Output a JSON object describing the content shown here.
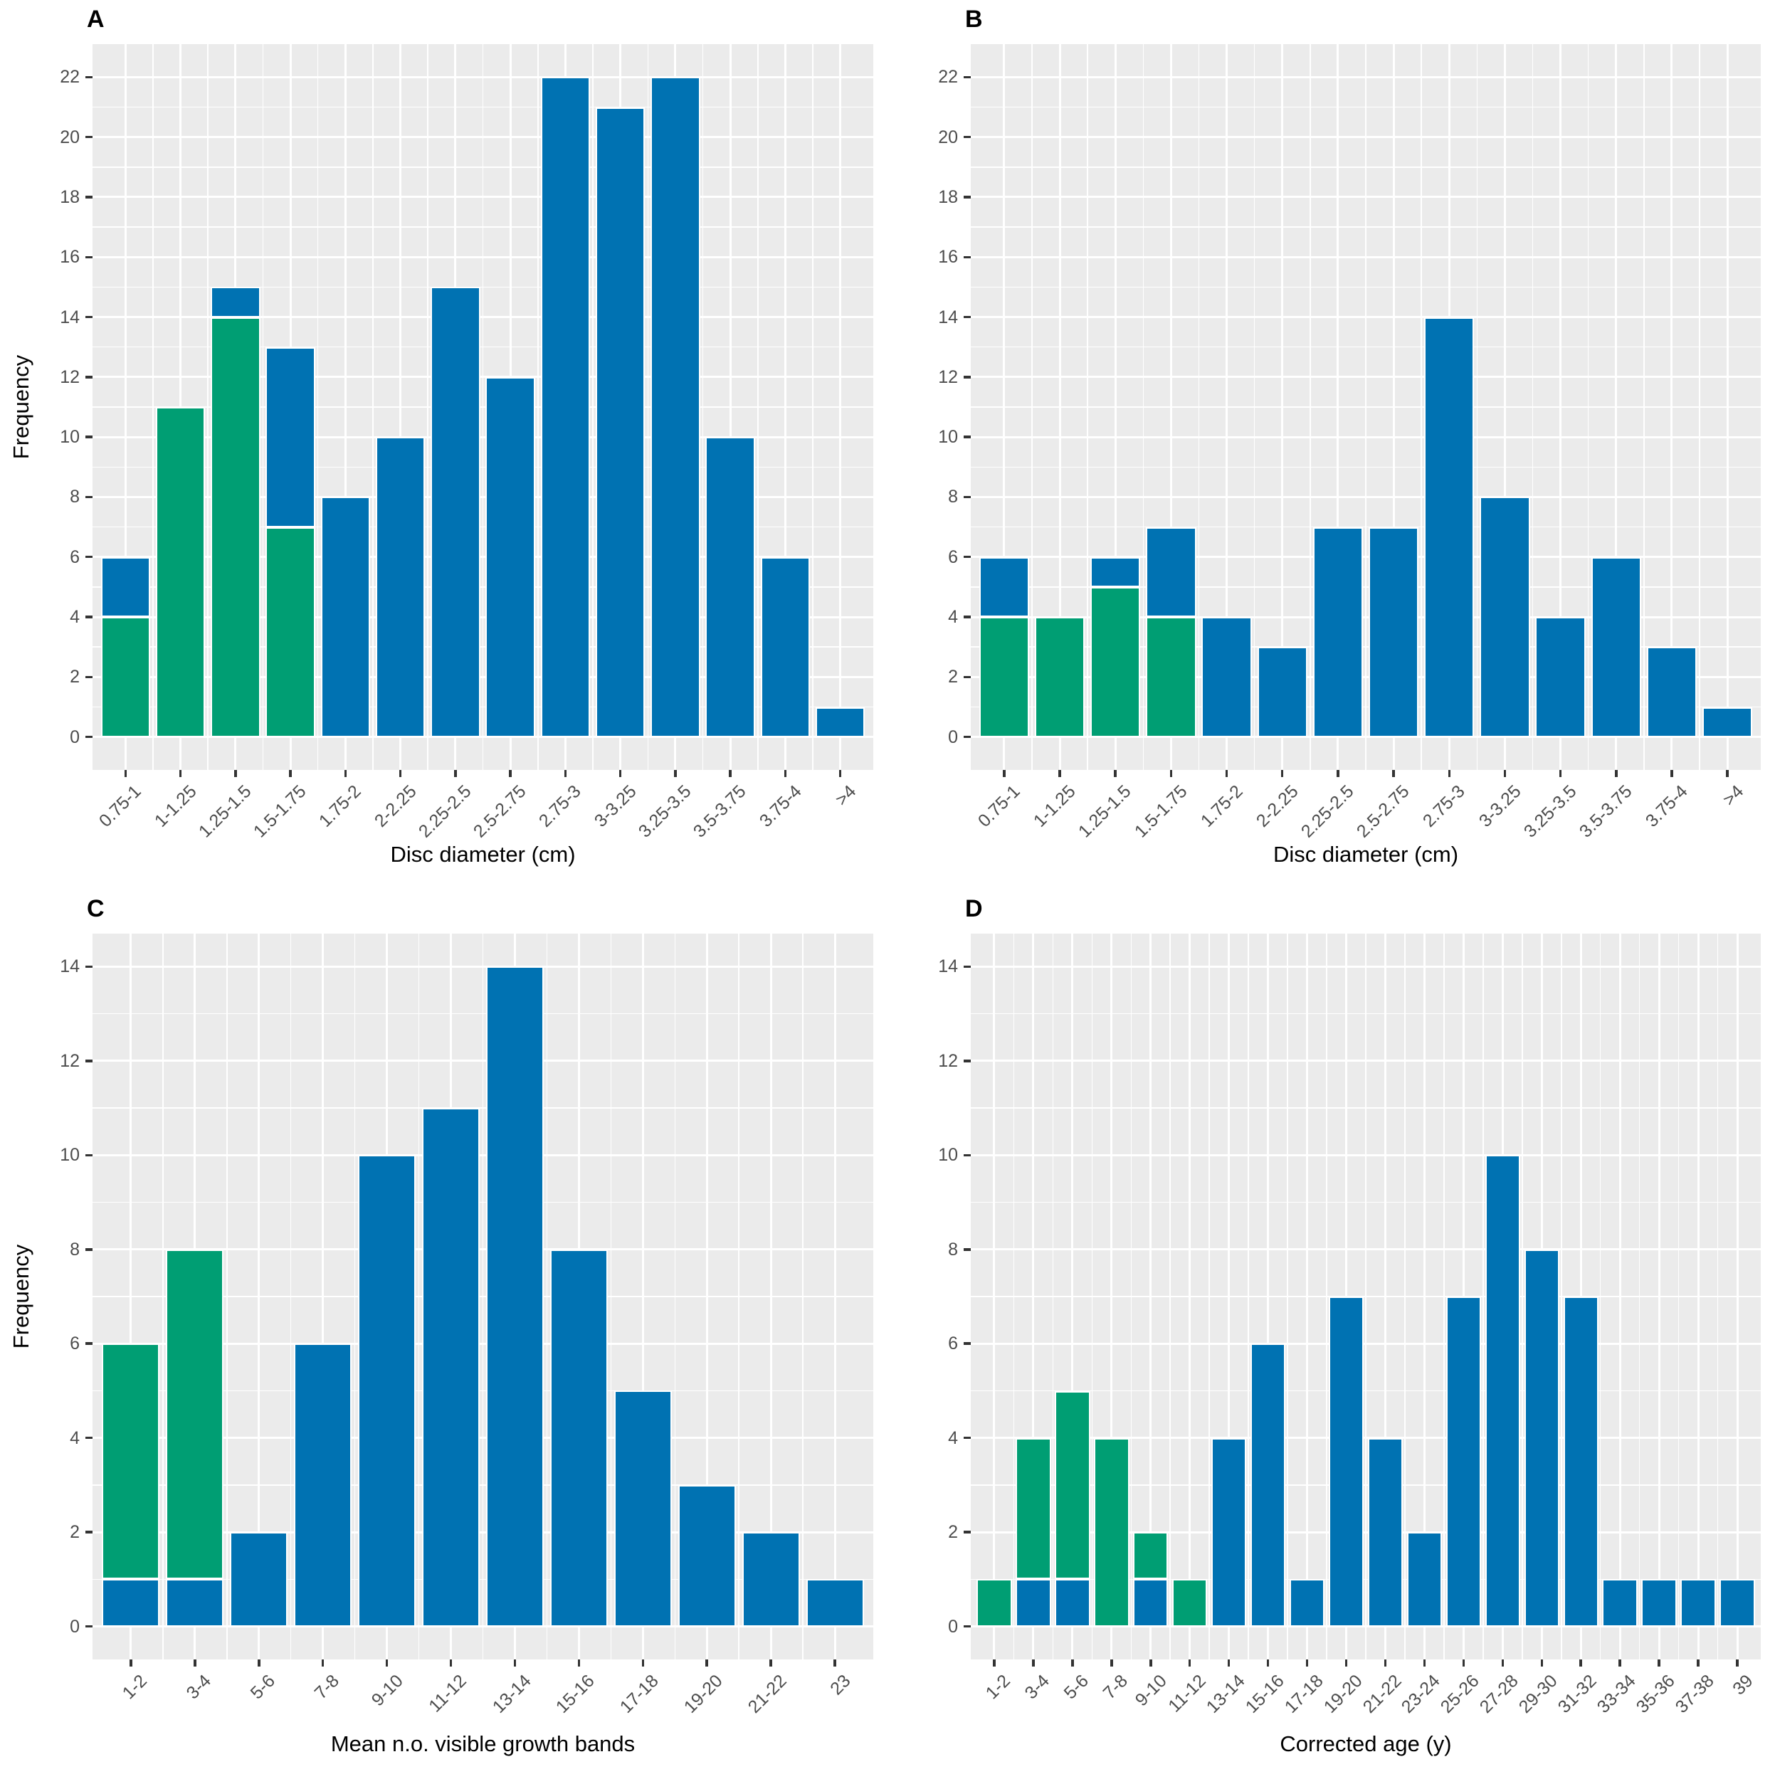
{
  "chart_data": {
    "type": "bar",
    "layout": "2x2 panel figure, stacked histograms",
    "legend": "none (two unlabeled groups distinguished by color)",
    "colors": {
      "blue": "#0072B2",
      "green": "#009E73",
      "panel_bg": "#EBEBEB",
      "grid": "#ffffff",
      "tick_text": "#4d4d4d"
    },
    "panels": [
      {
        "label": "A",
        "xlabel": "Disc diameter (cm)",
        "ylabel": "Frequency",
        "ymax": 22,
        "yticks": [
          0,
          2,
          4,
          6,
          8,
          10,
          12,
          14,
          16,
          18,
          20,
          22
        ],
        "categories": [
          "0.75-1",
          "1-1.25",
          "1.25-1.5",
          "1.5-1.75",
          "1.75-2",
          "2-2.25",
          "2.25-2.5",
          "2.5-2.75",
          "2.75-3",
          "3-3.25",
          "3.25-3.5",
          "3.5-3.75",
          "3.75-4",
          ">4"
        ],
        "bars": [
          [
            {
              "color": "green",
              "value": 4
            },
            {
              "color": "blue",
              "value": 2
            }
          ],
          [
            {
              "color": "green",
              "value": 11
            }
          ],
          [
            {
              "color": "green",
              "value": 14
            },
            {
              "color": "blue",
              "value": 1
            }
          ],
          [
            {
              "color": "green",
              "value": 7
            },
            {
              "color": "blue",
              "value": 6
            }
          ],
          [
            {
              "color": "blue",
              "value": 8
            }
          ],
          [
            {
              "color": "blue",
              "value": 10
            }
          ],
          [
            {
              "color": "blue",
              "value": 15
            }
          ],
          [
            {
              "color": "blue",
              "value": 12
            }
          ],
          [
            {
              "color": "blue",
              "value": 22
            }
          ],
          [
            {
              "color": "blue",
              "value": 21
            }
          ],
          [
            {
              "color": "blue",
              "value": 22
            }
          ],
          [
            {
              "color": "blue",
              "value": 10
            }
          ],
          [
            {
              "color": "blue",
              "value": 6
            }
          ],
          [
            {
              "color": "blue",
              "value": 1
            }
          ]
        ]
      },
      {
        "label": "B",
        "xlabel": "Disc diameter (cm)",
        "ylabel": "",
        "ymax": 22,
        "yticks": [
          0,
          2,
          4,
          6,
          8,
          10,
          12,
          14,
          16,
          18,
          20,
          22
        ],
        "categories": [
          "0.75-1",
          "1-1.25",
          "1.25-1.5",
          "1.5-1.75",
          "1.75-2",
          "2-2.25",
          "2.25-2.5",
          "2.5-2.75",
          "2.75-3",
          "3-3.25",
          "3.25-3.5",
          "3.5-3.75",
          "3.75-4",
          ">4"
        ],
        "bars": [
          [
            {
              "color": "green",
              "value": 4
            },
            {
              "color": "blue",
              "value": 2
            }
          ],
          [
            {
              "color": "green",
              "value": 4
            }
          ],
          [
            {
              "color": "green",
              "value": 5
            },
            {
              "color": "blue",
              "value": 1
            }
          ],
          [
            {
              "color": "green",
              "value": 4
            },
            {
              "color": "blue",
              "value": 3
            }
          ],
          [
            {
              "color": "blue",
              "value": 4
            }
          ],
          [
            {
              "color": "blue",
              "value": 3
            }
          ],
          [
            {
              "color": "blue",
              "value": 7
            }
          ],
          [
            {
              "color": "blue",
              "value": 7
            }
          ],
          [
            {
              "color": "blue",
              "value": 14
            }
          ],
          [
            {
              "color": "blue",
              "value": 8
            }
          ],
          [
            {
              "color": "blue",
              "value": 4
            }
          ],
          [
            {
              "color": "blue",
              "value": 6
            }
          ],
          [
            {
              "color": "blue",
              "value": 3
            }
          ],
          [
            {
              "color": "blue",
              "value": 1
            }
          ]
        ]
      },
      {
        "label": "C",
        "xlabel": "Mean n.o. visible growth bands",
        "ylabel": "Frequency",
        "ymax": 14,
        "yticks": [
          0,
          2,
          4,
          6,
          8,
          10,
          12,
          14
        ],
        "categories": [
          "1-2",
          "3-4",
          "5-6",
          "7-8",
          "9-10",
          "11-12",
          "13-14",
          "15-16",
          "17-18",
          "19-20",
          "21-22",
          "23"
        ],
        "bars": [
          [
            {
              "color": "blue",
              "value": 1
            },
            {
              "color": "green",
              "value": 5
            }
          ],
          [
            {
              "color": "blue",
              "value": 1
            },
            {
              "color": "green",
              "value": 7
            }
          ],
          [
            {
              "color": "blue",
              "value": 2
            }
          ],
          [
            {
              "color": "blue",
              "value": 6
            }
          ],
          [
            {
              "color": "blue",
              "value": 10
            }
          ],
          [
            {
              "color": "blue",
              "value": 11
            }
          ],
          [
            {
              "color": "blue",
              "value": 14
            }
          ],
          [
            {
              "color": "blue",
              "value": 8
            }
          ],
          [
            {
              "color": "blue",
              "value": 5
            }
          ],
          [
            {
              "color": "blue",
              "value": 3
            }
          ],
          [
            {
              "color": "blue",
              "value": 2
            }
          ],
          [
            {
              "color": "blue",
              "value": 1
            }
          ]
        ]
      },
      {
        "label": "D",
        "xlabel": "Corrected age (y)",
        "ylabel": "",
        "ymax": 14,
        "yticks": [
          0,
          2,
          4,
          6,
          8,
          10,
          12,
          14
        ],
        "categories": [
          "1-2",
          "3-4",
          "5-6",
          "7-8",
          "9-10",
          "11-12",
          "13-14",
          "15-16",
          "17-18",
          "19-20",
          "21-22",
          "23-24",
          "25-26",
          "27-28",
          "29-30",
          "31-32",
          "33-34",
          "35-36",
          "37-38",
          "39"
        ],
        "bars": [
          [
            {
              "color": "green",
              "value": 1
            }
          ],
          [
            {
              "color": "blue",
              "value": 1
            },
            {
              "color": "green",
              "value": 3
            }
          ],
          [
            {
              "color": "blue",
              "value": 1
            },
            {
              "color": "green",
              "value": 4
            }
          ],
          [
            {
              "color": "green",
              "value": 4
            }
          ],
          [
            {
              "color": "blue",
              "value": 1
            },
            {
              "color": "green",
              "value": 1
            }
          ],
          [
            {
              "color": "green",
              "value": 1
            }
          ],
          [
            {
              "color": "blue",
              "value": 4
            }
          ],
          [
            {
              "color": "blue",
              "value": 6
            }
          ],
          [
            {
              "color": "blue",
              "value": 1
            }
          ],
          [
            {
              "color": "blue",
              "value": 7
            }
          ],
          [
            {
              "color": "blue",
              "value": 4
            }
          ],
          [
            {
              "color": "blue",
              "value": 2
            }
          ],
          [
            {
              "color": "blue",
              "value": 7
            }
          ],
          [
            {
              "color": "blue",
              "value": 10
            }
          ],
          [
            {
              "color": "blue",
              "value": 8
            }
          ],
          [
            {
              "color": "blue",
              "value": 7
            }
          ],
          [
            {
              "color": "blue",
              "value": 1
            }
          ],
          [
            {
              "color": "blue",
              "value": 1
            }
          ],
          [
            {
              "color": "blue",
              "value": 1
            }
          ],
          [
            {
              "color": "blue",
              "value": 1
            }
          ]
        ]
      }
    ]
  }
}
